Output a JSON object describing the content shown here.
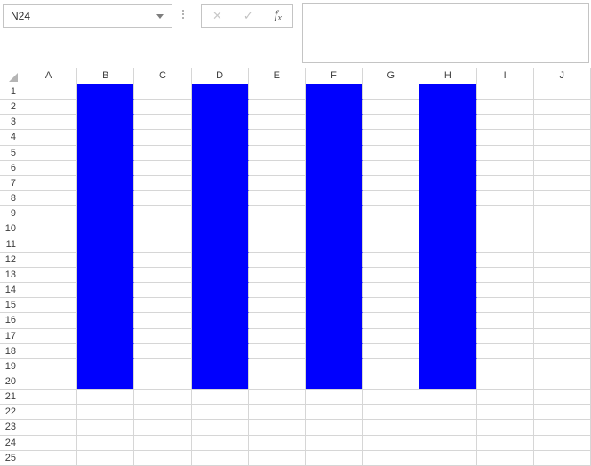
{
  "name_box": {
    "value": "N24"
  },
  "formula_toolbar": {
    "cancel_label": "✕",
    "enter_label": "✓",
    "function_f": "f",
    "function_x": "x"
  },
  "formula_bar": {
    "value": ""
  },
  "grid": {
    "columns": [
      "A",
      "B",
      "C",
      "D",
      "E",
      "F",
      "G",
      "H",
      "I",
      "J"
    ],
    "row_count": 25,
    "filled_columns": [
      "B",
      "D",
      "F",
      "H"
    ],
    "filled_row_start": 1,
    "filled_row_end": 20,
    "fill_color": "#0000fe"
  },
  "colors": {
    "fill": "#0000fe",
    "gridline": "#d6d6d6",
    "header_border": "#a3a3a3",
    "box_border": "#c4c4c4",
    "label_text": "#3d3d3d"
  }
}
